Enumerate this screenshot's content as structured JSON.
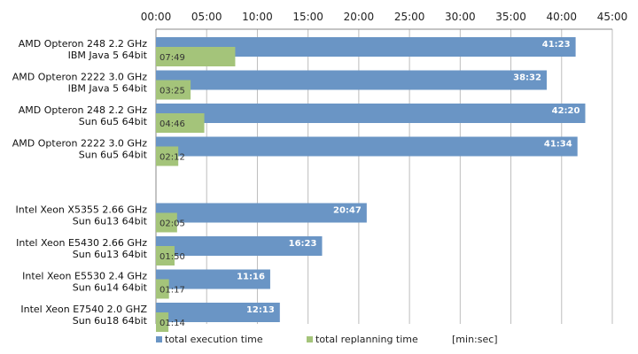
{
  "chart_data": {
    "type": "bar",
    "orientation": "horizontal",
    "title": "",
    "xlabel": "",
    "ylabel": "",
    "x_unit": "[min:sec]",
    "xlim": [
      0,
      2700
    ],
    "x_ticks": [
      "00:00",
      "05:00",
      "10:00",
      "15:00",
      "20:00",
      "25:00",
      "30:00",
      "35:00",
      "40:00",
      "45:00"
    ],
    "x_tick_seconds": [
      0,
      300,
      600,
      900,
      1200,
      1500,
      1800,
      2100,
      2400,
      2700
    ],
    "x_axis_position": "top",
    "grid": true,
    "legend_position": "bottom",
    "groups": [
      {
        "categories": [
          {
            "line1": "AMD Opteron 248 2.2 GHz",
            "line2": "IBM Java 5 64bit"
          },
          {
            "line1": "AMD Opteron 2222 3.0 GHz",
            "line2": "IBM Java 5 64bit"
          },
          {
            "line1": "AMD Opteron 248 2.2 GHz",
            "line2": "Sun 6u5 64bit"
          },
          {
            "line1": "AMD Opteron 2222 3.0 GHz",
            "line2": "Sun 6u5 64bit"
          }
        ]
      },
      {
        "categories": [
          {
            "line1": "Intel Xeon X5355 2.66 GHz",
            "line2": "Sun 6u13 64bit"
          },
          {
            "line1": "Intel Xeon E5430 2.66 GHz",
            "line2": "Sun 6u13 64bit"
          },
          {
            "line1": "Intel Xeon E5530 2.4 GHz",
            "line2": "Sun 6u14 64bit"
          },
          {
            "line1": "Intel Xeon E7540 2.0 GHZ",
            "line2": "Sun 6u18 64bit"
          }
        ]
      }
    ],
    "series": [
      {
        "name": "total execution time",
        "color": "#6a95c5",
        "label_color": "#ffffff",
        "labels": [
          "41:23",
          "38:32",
          "42:20",
          "41:34",
          "20:47",
          "16:23",
          "11:16",
          "12:13"
        ],
        "values_seconds": [
          2483,
          2312,
          2540,
          2494,
          1247,
          983,
          676,
          733
        ]
      },
      {
        "name": "total replanning time",
        "color": "#a4c47a",
        "label_color": "#333333",
        "labels": [
          "07:49",
          "03:25",
          "04:46",
          "02:12",
          "02:05",
          "01:50",
          "01:17",
          "01:14"
        ],
        "values_seconds": [
          469,
          205,
          286,
          132,
          125,
          110,
          77,
          74
        ]
      }
    ]
  }
}
